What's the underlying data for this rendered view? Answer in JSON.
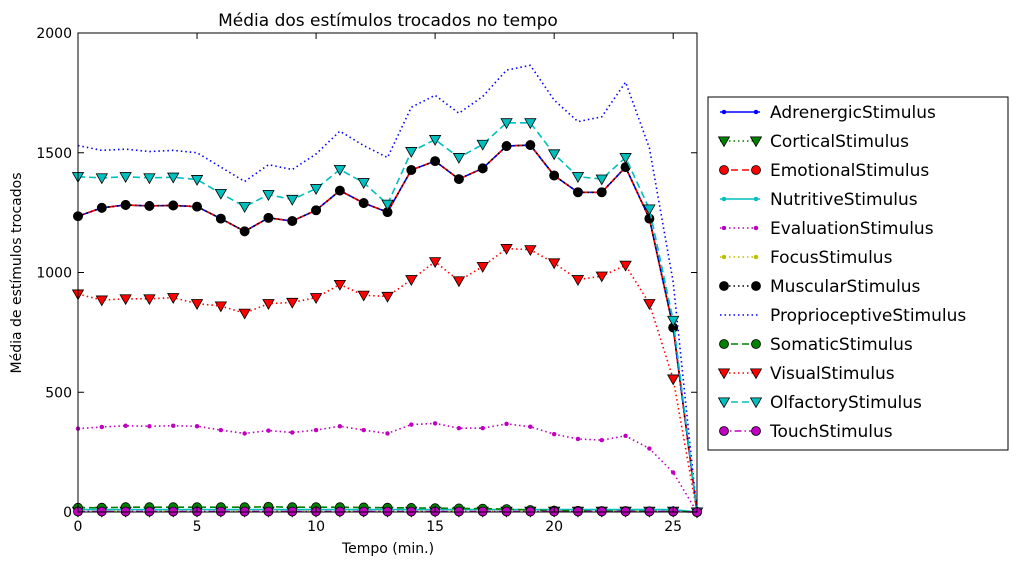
{
  "chart_data": {
    "type": "line",
    "title": "Média dos estímulos trocados no tempo",
    "xlabel": "Tempo (min.)",
    "ylabel": "Média de estímulos trocados",
    "xlim": [
      0,
      26
    ],
    "ylim": [
      0,
      2000
    ],
    "xticks": [
      0,
      5,
      10,
      15,
      20,
      25
    ],
    "yticks": [
      0,
      500,
      1000,
      1500,
      2000
    ],
    "grid": false,
    "legend_position": "right, outside plot",
    "x": [
      0,
      1,
      2,
      3,
      4,
      5,
      6,
      7,
      8,
      9,
      10,
      11,
      12,
      13,
      14,
      15,
      16,
      17,
      18,
      19,
      20,
      21,
      22,
      23,
      24,
      25,
      26
    ],
    "series": [
      {
        "name": "AdrenergicStimulus",
        "color": "#0000ff",
        "linestyle": "solid",
        "marker": "dot",
        "values": [
          1235,
          1270,
          1282,
          1278,
          1280,
          1275,
          1225,
          1172,
          1228,
          1215,
          1260,
          1342,
          1290,
          1252,
          1428,
          1465,
          1390,
          1435,
          1528,
          1532,
          1405,
          1335,
          1335,
          1440,
          1225,
          770,
          0
        ]
      },
      {
        "name": "CorticalStimulus",
        "color": "#008000",
        "linestyle": "dotted",
        "marker": "triangle-down",
        "values": [
          3,
          3,
          3,
          3,
          3,
          3,
          3,
          3,
          3,
          3,
          3,
          3,
          3,
          3,
          3,
          3,
          3,
          3,
          3,
          3,
          3,
          3,
          3,
          3,
          3,
          3,
          0
        ]
      },
      {
        "name": "EmotionalStimulus",
        "color": "#ff0000",
        "linestyle": "dashed",
        "marker": "circle",
        "values": [
          1235,
          1270,
          1282,
          1278,
          1280,
          1275,
          1225,
          1172,
          1228,
          1215,
          1260,
          1342,
          1290,
          1252,
          1428,
          1465,
          1390,
          1435,
          1528,
          1532,
          1405,
          1335,
          1335,
          1440,
          1225,
          770,
          0
        ]
      },
      {
        "name": "NutritiveStimulus",
        "color": "#00bfbf",
        "linestyle": "solid",
        "marker": "dot",
        "values": [
          10,
          10,
          10,
          10,
          10,
          10,
          10,
          10,
          10,
          10,
          10,
          10,
          10,
          10,
          10,
          10,
          10,
          10,
          10,
          10,
          10,
          10,
          10,
          10,
          10,
          10,
          0
        ]
      },
      {
        "name": "EvaluationStimulus",
        "color": "#bf00bf",
        "linestyle": "dotted",
        "marker": "dot",
        "values": [
          348,
          355,
          360,
          358,
          360,
          358,
          342,
          328,
          340,
          332,
          342,
          358,
          342,
          328,
          365,
          370,
          350,
          350,
          368,
          356,
          325,
          305,
          300,
          318,
          265,
          165,
          0
        ]
      },
      {
        "name": "FocusStimulus",
        "color": "#bfbf00",
        "linestyle": "dotted",
        "marker": "dot",
        "values": [
          3,
          3,
          3,
          3,
          3,
          3,
          3,
          3,
          3,
          3,
          3,
          3,
          3,
          3,
          3,
          3,
          3,
          3,
          3,
          3,
          3,
          3,
          3,
          3,
          3,
          3,
          0
        ]
      },
      {
        "name": "MuscularStimulus",
        "color": "#000000",
        "linestyle": "dotted",
        "marker": "circle",
        "values": [
          1235,
          1270,
          1282,
          1278,
          1280,
          1275,
          1225,
          1172,
          1228,
          1215,
          1260,
          1342,
          1290,
          1252,
          1428,
          1465,
          1390,
          1435,
          1528,
          1532,
          1405,
          1335,
          1335,
          1440,
          1225,
          770,
          0
        ]
      },
      {
        "name": "ProprioceptiveStimulus",
        "color": "#0000ff",
        "linestyle": "dotted",
        "marker": "none",
        "values": [
          1530,
          1510,
          1515,
          1505,
          1510,
          1500,
          1440,
          1380,
          1450,
          1430,
          1495,
          1590,
          1530,
          1480,
          1690,
          1740,
          1665,
          1735,
          1845,
          1865,
          1720,
          1630,
          1650,
          1795,
          1520,
          960,
          0
        ]
      },
      {
        "name": "SomaticStimulus",
        "color": "#008000",
        "linestyle": "dashed",
        "marker": "circle",
        "values": [
          18,
          18,
          20,
          20,
          20,
          20,
          20,
          20,
          22,
          20,
          20,
          20,
          19,
          18,
          17,
          16,
          15,
          14,
          12,
          8,
          6,
          5,
          4,
          4,
          3,
          2,
          0
        ]
      },
      {
        "name": "VisualStimulus",
        "color": "#ff0000",
        "linestyle": "dotted",
        "marker": "triangle-down",
        "values": [
          910,
          885,
          890,
          890,
          895,
          870,
          860,
          830,
          870,
          875,
          895,
          950,
          905,
          900,
          970,
          1045,
          965,
          1025,
          1100,
          1095,
          1040,
          970,
          985,
          1030,
          870,
          555,
          0
        ]
      },
      {
        "name": "OlfactoryStimulus",
        "color": "#00bfbf",
        "linestyle": "dashed",
        "marker": "triangle-down",
        "values": [
          1400,
          1395,
          1400,
          1395,
          1398,
          1388,
          1330,
          1275,
          1325,
          1305,
          1350,
          1430,
          1375,
          1285,
          1505,
          1555,
          1480,
          1535,
          1625,
          1625,
          1495,
          1400,
          1390,
          1480,
          1265,
          800,
          0
        ]
      },
      {
        "name": "TouchStimulus",
        "color": "#bf00bf",
        "linestyle": "dashdot",
        "marker": "circle",
        "values": [
          2,
          2,
          2,
          2,
          2,
          2,
          2,
          2,
          2,
          2,
          2,
          2,
          2,
          2,
          2,
          2,
          2,
          2,
          2,
          2,
          2,
          2,
          2,
          2,
          2,
          2,
          0
        ]
      }
    ]
  }
}
